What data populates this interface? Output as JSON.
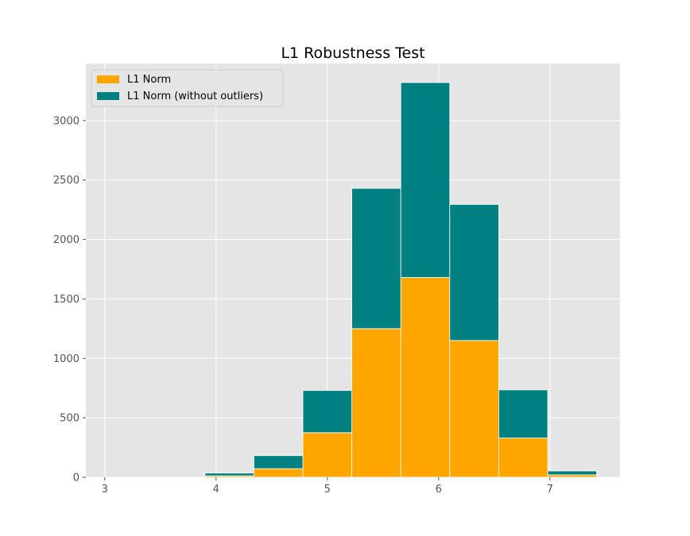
{
  "chart_data": {
    "type": "bar",
    "stacked": true,
    "title": "L1 Robustness Test",
    "xlabel": "",
    "ylabel": "",
    "xlim": [
      2.83,
      7.63
    ],
    "ylim": [
      0,
      3480
    ],
    "x_ticks": [
      3,
      4,
      5,
      6,
      7
    ],
    "y_ticks": [
      0,
      500,
      1000,
      1500,
      2000,
      2500,
      3000
    ],
    "bin_edges": [
      3.9,
      4.34,
      4.78,
      5.22,
      5.66,
      6.1,
      6.54,
      6.98,
      7.42
    ],
    "grid": true,
    "legend_position": "top-left",
    "series": [
      {
        "name": "L1 Norm",
        "color": "#ffa500",
        "values": [
          12,
          72,
          375,
          1250,
          1680,
          1150,
          330,
          20
        ]
      },
      {
        "name": "L1 Norm (without outliers)",
        "color": "#008080",
        "values": [
          23,
          110,
          355,
          1180,
          1640,
          1145,
          405,
          33
        ]
      }
    ]
  }
}
